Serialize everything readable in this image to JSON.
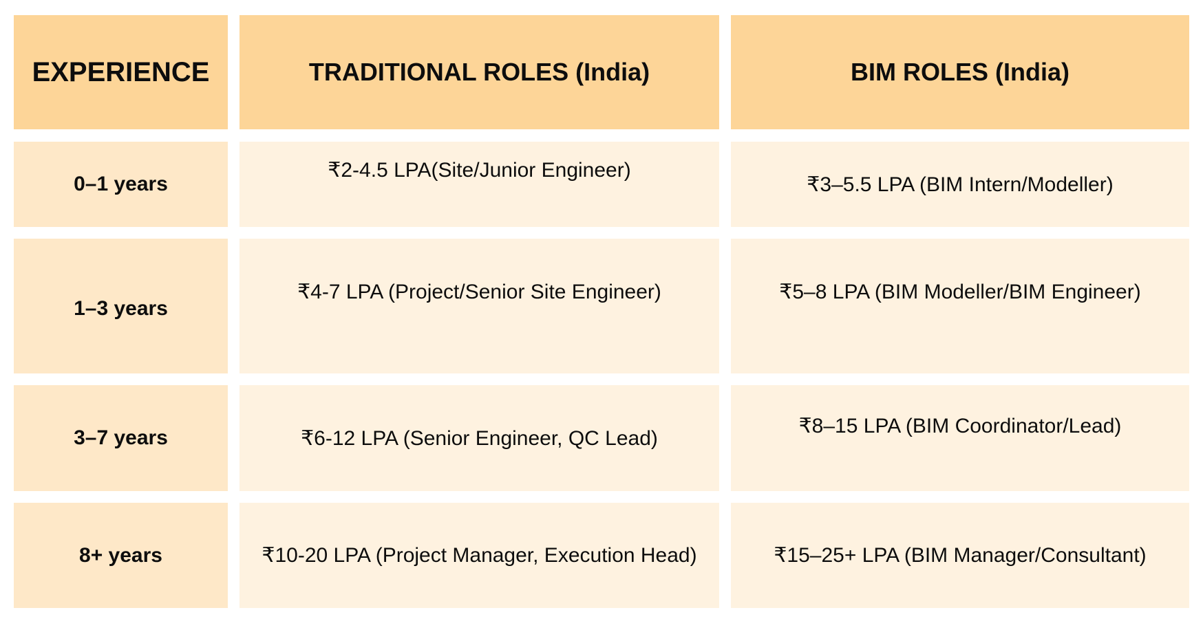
{
  "headers": {
    "experience": "EXPERIENCE",
    "traditional": "TRADITIONAL ROLES (India)",
    "bim": "BIM ROLES (India)"
  },
  "rows": [
    {
      "experience": "0–1 years",
      "traditional": "₹2-4.5 LPA(Site/Junior Engineer)",
      "bim": "₹3–5.5 LPA (BIM Intern/Modeller)"
    },
    {
      "experience": "1–3 years",
      "traditional": "₹4-7 LPA (Project/Senior Site Engineer)",
      "bim": "₹5–8 LPA (BIM Modeller/BIM Engineer)"
    },
    {
      "experience": "3–7 years",
      "traditional": "₹6-12 LPA (Senior Engineer, QC Lead)",
      "bim": "₹8–15 LPA (BIM Coordinator/Lead)"
    },
    {
      "experience": "8+ years",
      "traditional": "₹10-20 LPA (Project Manager, Execution Head)",
      "bim": "₹15–25+ LPA (BIM Manager/Consultant)"
    }
  ],
  "colors": {
    "header_bg": "#fdd598",
    "experience_bg": "#fee8c8",
    "body_bg": "#fef2e0",
    "text": "#0d0d0d"
  }
}
